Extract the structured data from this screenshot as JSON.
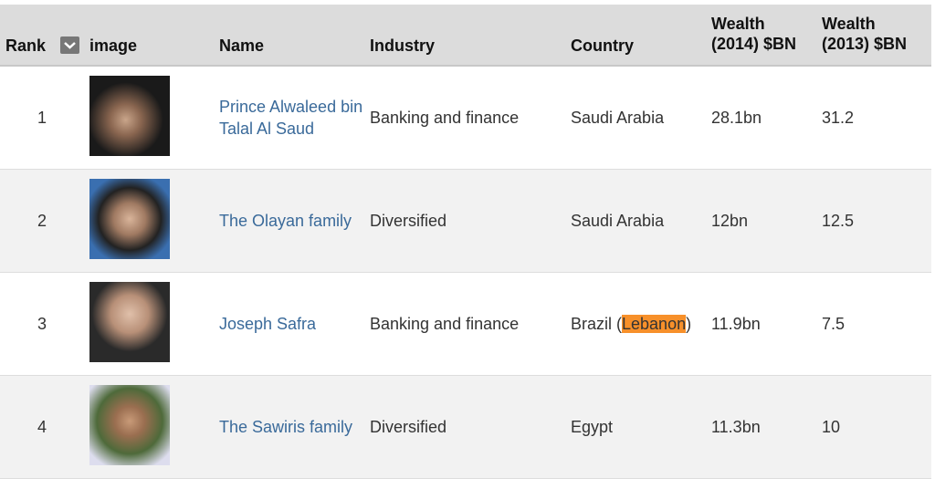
{
  "headers": {
    "rank": "Rank",
    "image": "image",
    "name": "Name",
    "industry": "Industry",
    "country": "Country",
    "w14a": "Wealth",
    "w14b": "(2014) $BN",
    "w13a": "Wealth",
    "w13b": "(2013) $BN"
  },
  "rows": [
    {
      "rank": "1",
      "name": "Prince Alwaleed bin Talal Al Saud",
      "industry": "Banking and finance",
      "country": "Saudi Arabia",
      "country_hl": "",
      "country_end": "",
      "w14": "28.1bn",
      "w13": "31.2"
    },
    {
      "rank": "2",
      "name": "The Olayan family",
      "industry": "Diversified",
      "country": "Saudi Arabia",
      "country_hl": "",
      "country_end": "",
      "w14": "12bn",
      "w13": "12.5"
    },
    {
      "rank": "3",
      "name": "Joseph Safra",
      "industry": "Banking and finance",
      "country": "Brazil (",
      "country_hl": "Lebanon",
      "country_end": ")",
      "w14": "11.9bn",
      "w13": "7.5"
    },
    {
      "rank": "4",
      "name": "The Sawiris family",
      "industry": "Diversified",
      "country": "Egypt",
      "country_hl": "",
      "country_end": "",
      "w14": "11.3bn",
      "w13": "10"
    }
  ],
  "colors": {
    "header_bg": "#dcdcdc",
    "link": "#3a6a9a",
    "highlight": "#f7902a",
    "alt_row": "#f2f2f2"
  }
}
